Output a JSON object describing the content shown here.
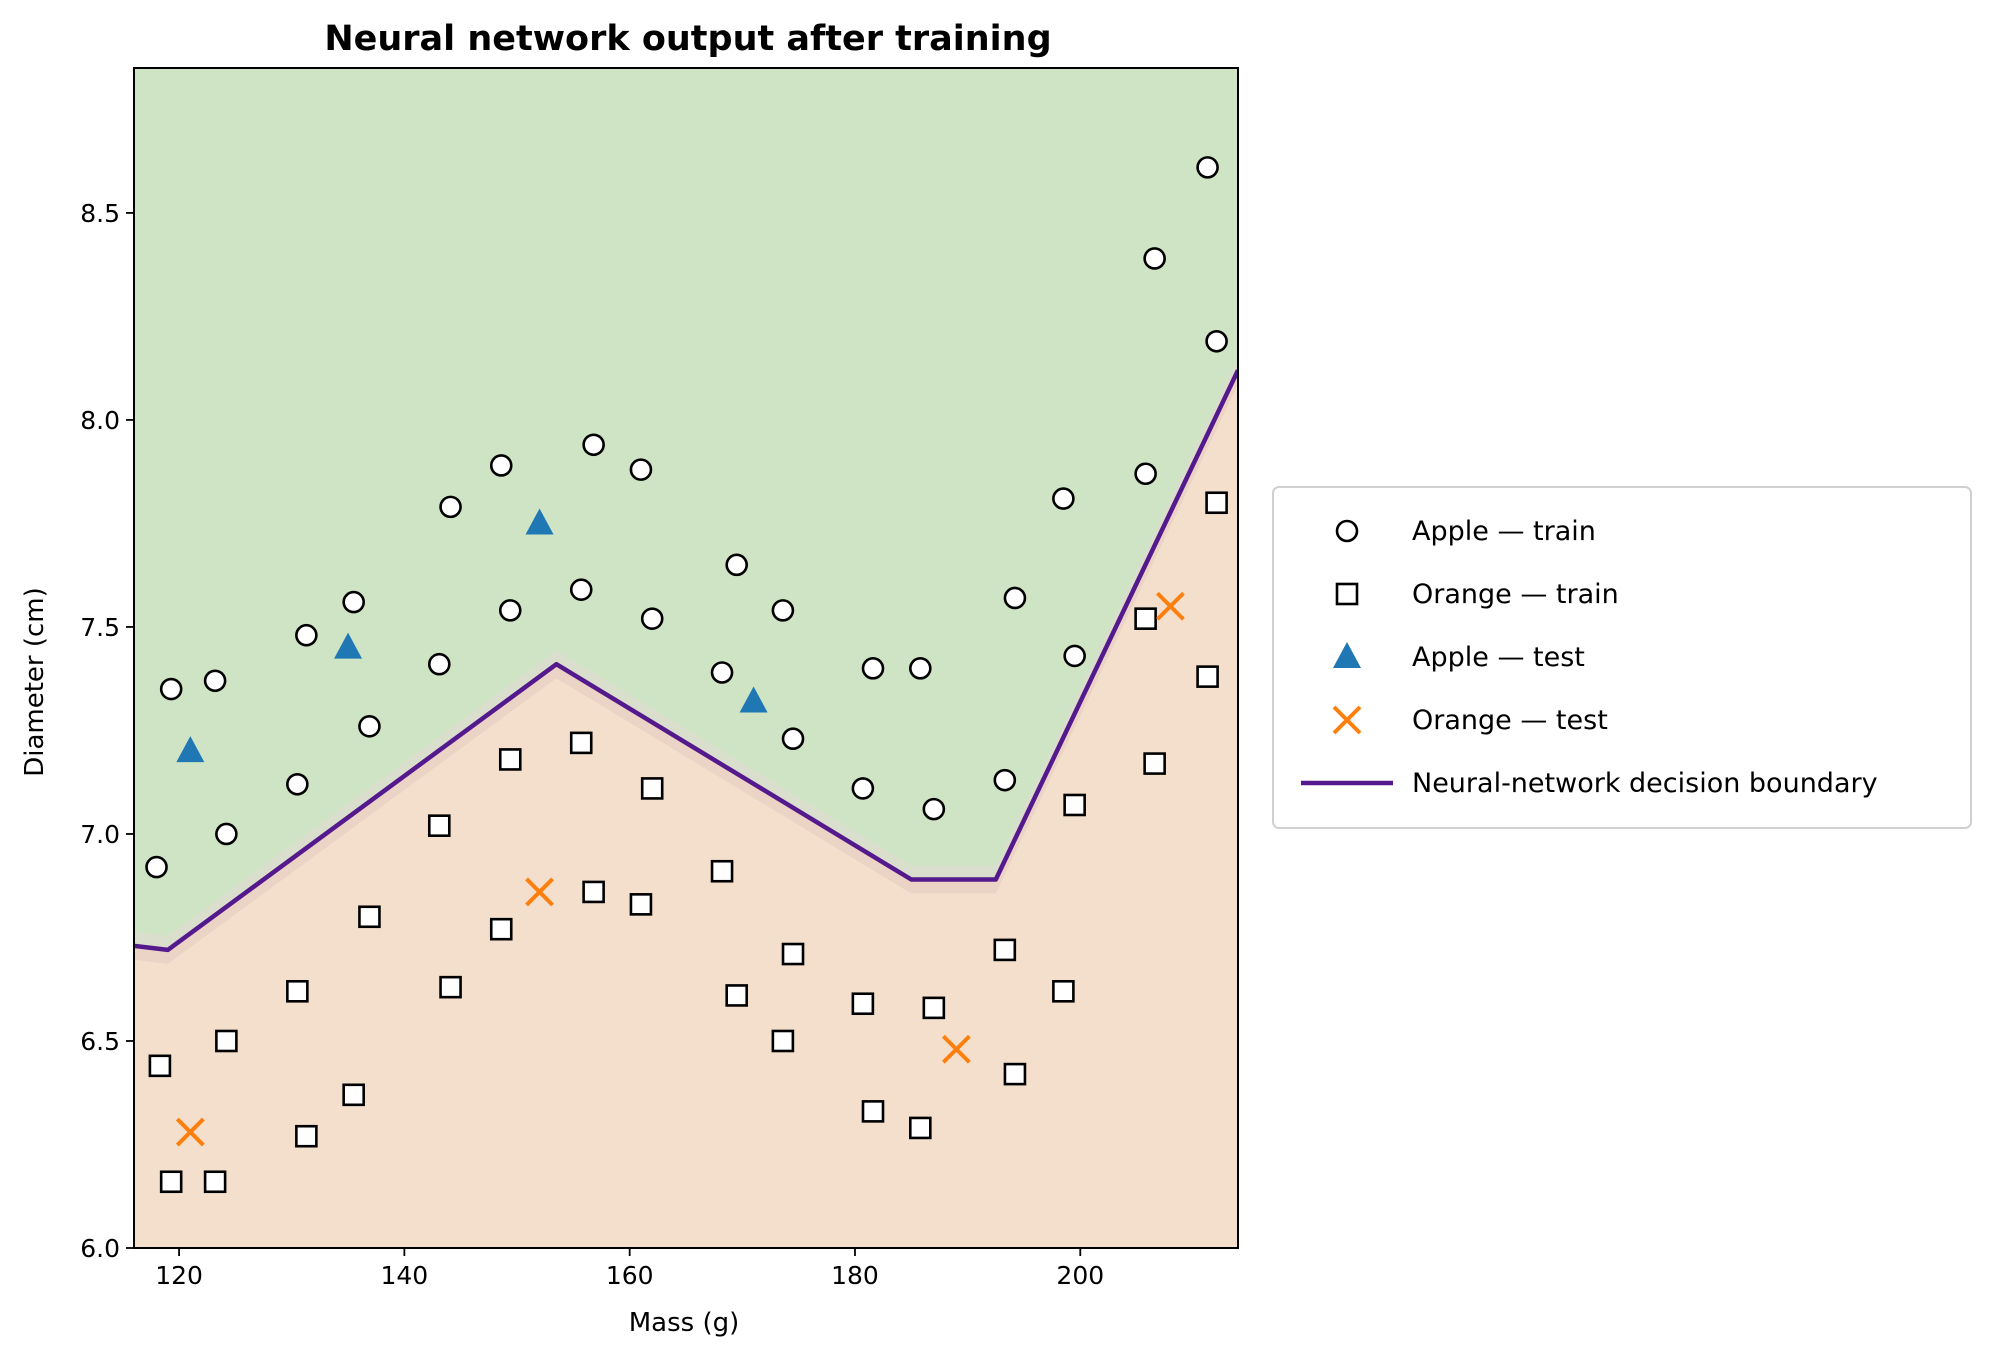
{
  "chart_data": {
    "type": "scatter",
    "title": "Neural network output after training",
    "xlabel": "Mass (g)",
    "ylabel": "Diameter (cm)",
    "xlim": [
      116,
      214
    ],
    "ylim": [
      6.0,
      8.85
    ],
    "xticks": [
      120,
      140,
      160,
      180,
      200
    ],
    "yticks": [
      6.0,
      6.5,
      7.0,
      7.5,
      8.0,
      8.5
    ],
    "xtick_labels": [
      "120",
      "140",
      "160",
      "180",
      "200"
    ],
    "ytick_labels": [
      "6.0",
      "6.5",
      "7.0",
      "7.5",
      "8.0",
      "8.5"
    ],
    "grid": false,
    "legend_position": "outside-right",
    "region_colors": {
      "apple": "#cfe4c4",
      "orange": "#f3dfcc"
    },
    "series": [
      {
        "name": "Apple — train",
        "marker": "circle",
        "color": "#000000",
        "points": [
          [
            118,
            6.92
          ],
          [
            119.3,
            7.35
          ],
          [
            123.2,
            7.37
          ],
          [
            124.2,
            7.0
          ],
          [
            130.5,
            7.12
          ],
          [
            131.3,
            7.48
          ],
          [
            135.5,
            7.56
          ],
          [
            136.9,
            7.26
          ],
          [
            143.1,
            7.41
          ],
          [
            144.1,
            7.79
          ],
          [
            148.6,
            7.89
          ],
          [
            149.4,
            7.54
          ],
          [
            155.7,
            7.59
          ],
          [
            156.8,
            7.94
          ],
          [
            161.0,
            7.88
          ],
          [
            162.0,
            7.52
          ],
          [
            168.2,
            7.39
          ],
          [
            169.5,
            7.65
          ],
          [
            173.6,
            7.54
          ],
          [
            174.5,
            7.23
          ],
          [
            180.7,
            7.11
          ],
          [
            181.6,
            7.4
          ],
          [
            185.8,
            7.4
          ],
          [
            187.0,
            7.06
          ],
          [
            193.3,
            7.13
          ],
          [
            194.2,
            7.57
          ],
          [
            198.5,
            7.81
          ],
          [
            199.5,
            7.43
          ],
          [
            205.8,
            7.87
          ],
          [
            206.6,
            8.39
          ],
          [
            211.3,
            8.61
          ],
          [
            212.1,
            8.19
          ]
        ]
      },
      {
        "name": "Orange — train",
        "marker": "square",
        "color": "#000000",
        "points": [
          [
            118.3,
            6.44
          ],
          [
            119.3,
            6.16
          ],
          [
            123.2,
            6.16
          ],
          [
            124.2,
            6.5
          ],
          [
            130.5,
            6.62
          ],
          [
            131.3,
            6.27
          ],
          [
            135.5,
            6.37
          ],
          [
            136.9,
            6.8
          ],
          [
            143.1,
            7.02
          ],
          [
            144.1,
            6.63
          ],
          [
            148.6,
            6.77
          ],
          [
            149.4,
            7.18
          ],
          [
            155.7,
            7.22
          ],
          [
            156.8,
            6.86
          ],
          [
            161.0,
            6.83
          ],
          [
            162.0,
            7.11
          ],
          [
            168.2,
            6.91
          ],
          [
            169.5,
            6.61
          ],
          [
            173.6,
            6.5
          ],
          [
            174.5,
            6.71
          ],
          [
            180.7,
            6.59
          ],
          [
            181.6,
            6.33
          ],
          [
            185.8,
            6.29
          ],
          [
            187.0,
            6.58
          ],
          [
            193.3,
            6.72
          ],
          [
            194.2,
            6.42
          ],
          [
            198.5,
            6.62
          ],
          [
            199.5,
            7.07
          ],
          [
            205.8,
            7.52
          ],
          [
            206.6,
            7.17
          ],
          [
            211.3,
            7.38
          ],
          [
            212.1,
            7.8
          ]
        ]
      },
      {
        "name": "Apple — test",
        "marker": "triangle",
        "color": "#1f77b4",
        "points": [
          [
            121.0,
            7.2
          ],
          [
            135.0,
            7.45
          ],
          [
            152.0,
            7.75
          ],
          [
            171.0,
            7.32
          ]
        ]
      },
      {
        "name": "Orange — test",
        "marker": "x",
        "color": "#ff7f0e",
        "points": [
          [
            121.0,
            6.28
          ],
          [
            152.0,
            6.86
          ],
          [
            189.0,
            6.48
          ],
          [
            208.0,
            7.55
          ]
        ]
      },
      {
        "name": "Neural-network decision boundary",
        "marker": "line",
        "color": "#54198c",
        "points": [
          [
            116,
            6.73
          ],
          [
            119,
            6.72
          ],
          [
            153.5,
            7.41
          ],
          [
            185,
            6.89
          ],
          [
            192.5,
            6.89
          ],
          [
            214,
            8.12
          ]
        ]
      }
    ]
  }
}
